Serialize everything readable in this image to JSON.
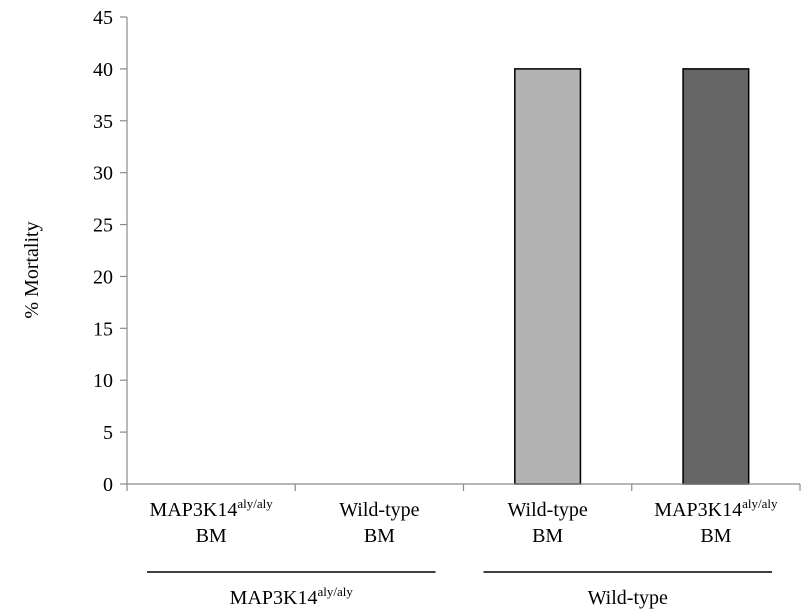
{
  "chart_data": {
    "type": "bar",
    "ylabel": "% Mortality",
    "ylim": [
      0,
      45
    ],
    "yticks": [
      0,
      5,
      10,
      15,
      20,
      25,
      30,
      35,
      40,
      45
    ],
    "grid": false,
    "categories": [
      {
        "main": "MAP3K14",
        "sup": "aly/aly",
        "line2": "BM"
      },
      {
        "main": "Wild-type",
        "sup": "",
        "line2": "BM"
      },
      {
        "main": "Wild-type",
        "sup": "",
        "line2": "BM"
      },
      {
        "main": "MAP3K14",
        "sup": "aly/aly",
        "line2": "BM"
      }
    ],
    "values": [
      0,
      0,
      40,
      40
    ],
    "bar_colors": [
      "#b3b3b3",
      "#b3b3b3",
      "#b3b3b3",
      "#666666"
    ],
    "groups": [
      {
        "main": "MAP3K14",
        "sup": "aly/aly",
        "span": [
          0,
          1
        ]
      },
      {
        "main": "Wild-type",
        "sup": "",
        "span": [
          2,
          3
        ]
      }
    ]
  }
}
